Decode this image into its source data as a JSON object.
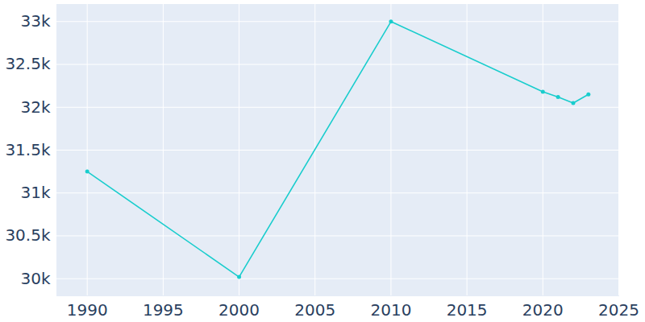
{
  "chart_data": {
    "type": "line",
    "x": [
      1990,
      2000,
      2010,
      2020,
      2021,
      2022,
      2023
    ],
    "values": [
      31250,
      30020,
      33000,
      32180,
      32120,
      32050,
      32150
    ],
    "color": "#19cdcd",
    "marker": "circle",
    "xlim": [
      1988,
      2025
    ],
    "xticks": [
      1990,
      1995,
      2000,
      2005,
      2010,
      2015,
      2020,
      2025
    ],
    "ylim": [
      29800,
      33200
    ],
    "yticks": [
      {
        "value": 30000,
        "label": "30k"
      },
      {
        "value": 30500,
        "label": "30.5k"
      },
      {
        "value": 31000,
        "label": "31k"
      },
      {
        "value": 31500,
        "label": "31.5k"
      },
      {
        "value": 32000,
        "label": "32k"
      },
      {
        "value": 32500,
        "label": "32.5k"
      },
      {
        "value": 33000,
        "label": "33k"
      }
    ],
    "grid": true
  }
}
